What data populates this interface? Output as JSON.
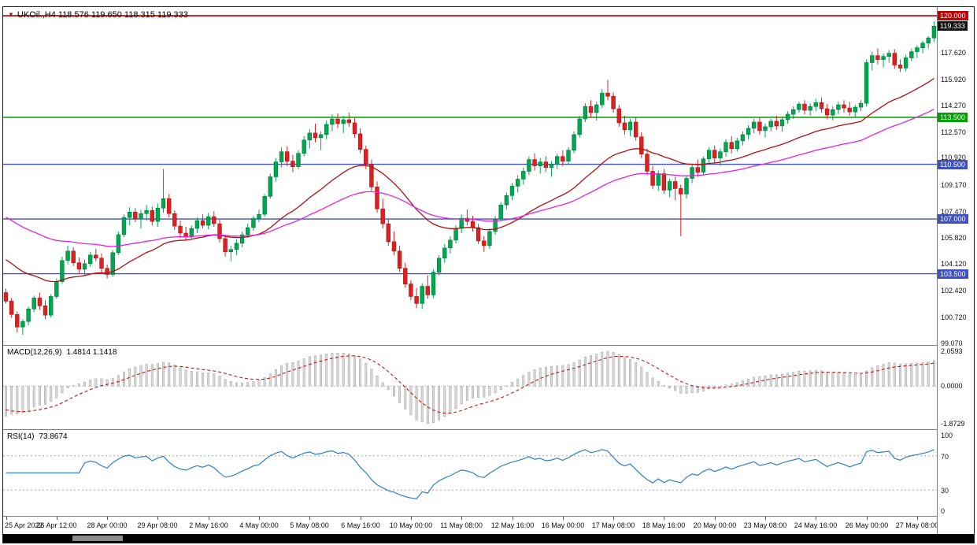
{
  "colors": {
    "bull": "#00a651",
    "bull_stroke": "#067a3c",
    "bear": "#de2020",
    "bear_stroke": "#9c1616",
    "macd_hist_fill": "#d8d8d8",
    "macd_hist_stroke": "#a0a0a0",
    "macd_signal": "#cc0000",
    "rsi_line": "#2f7ec7",
    "grid_dotted": "#a8a8a8",
    "panel_border": "#7a7a7a",
    "scrollbar_bg": "#000000",
    "scrollbar_handle": "#8a8a8a"
  },
  "chart_data": {
    "type": "candlestick_with_indicators",
    "symbol_title": "UKOil.,H4",
    "ohlc_title": "118.576 119.650 118.315 119.333",
    "current_bar": {
      "open": 118.576,
      "high": 119.65,
      "low": 118.315,
      "close": 119.333
    },
    "main_range": {
      "min": 98.95,
      "max": 120.55
    },
    "price_axis_ticks": [
      {
        "label": "117.620",
        "price": 117.62
      },
      {
        "label": "115.920",
        "price": 115.92
      },
      {
        "label": "114.270",
        "price": 114.27
      },
      {
        "label": "112.570",
        "price": 112.57
      },
      {
        "label": "110.920",
        "price": 110.92
      },
      {
        "label": "109.170",
        "price": 109.17
      },
      {
        "label": "107.470",
        "price": 107.47
      },
      {
        "label": "105.820",
        "price": 105.82
      },
      {
        "label": "104.120",
        "price": 104.12
      },
      {
        "label": "102.420",
        "price": 102.42
      },
      {
        "label": "100.720",
        "price": 100.72
      },
      {
        "label": "99.070",
        "price": 99.07
      }
    ],
    "levels": [
      {
        "price": 120.0,
        "color": "#c00000",
        "width": 1.6
      },
      {
        "price": 113.5,
        "color": "#00a000",
        "width": 1.4
      },
      {
        "price": 110.5,
        "color": "#3f51c1",
        "width": 1.4
      },
      {
        "price": 107.0,
        "color": "#3f51c1",
        "width": 1.4
      },
      {
        "price": 103.5,
        "color": "#3f51c1",
        "width": 1.4
      }
    ],
    "badges": [
      {
        "label": "120.000",
        "price": 120.0,
        "bg": "#c00000"
      },
      {
        "label": "119.333",
        "price": 119.333,
        "bg": "#111111"
      },
      {
        "label": "113.500",
        "price": 113.5,
        "bg": "#00a000"
      },
      {
        "label": "110.500",
        "price": 110.5,
        "bg": "#3f51c1"
      },
      {
        "label": "107.000",
        "price": 107.0,
        "bg": "#3f51c1"
      },
      {
        "label": "103.500",
        "price": 103.5,
        "bg": "#3f51c1"
      }
    ],
    "moving_averages": [
      {
        "period": 28,
        "seed": 104.6,
        "color": "#b01010"
      },
      {
        "period": 60,
        "seed": 107.3,
        "color": "#e321e3"
      }
    ],
    "macd": {
      "label": "MACD(12,26,9)",
      "values_text": "1.4814 1.1418",
      "fast": 12,
      "slow": 26,
      "signal_period": 9,
      "axis_labels": [
        "2.0593",
        "0.0000",
        "-1.8729"
      ]
    },
    "rsi": {
      "label": "RSI(14)",
      "value_text": "73.8674",
      "period": 14,
      "axis_labels": [
        {
          "label": "100",
          "value": 100
        },
        {
          "label": "70",
          "value": 70
        },
        {
          "label": "30",
          "value": 30
        },
        {
          "label": "0",
          "value": 0
        }
      ],
      "guides": [
        70,
        30
      ]
    },
    "label_step": 9,
    "time_labels": [
      "25 Apr 2022",
      "26 Apr 12:00",
      "28 Apr 00:00",
      "29 Apr 08:00",
      "2 May 16:00",
      "4 May 00:00",
      "5 May 08:00",
      "6 May 16:00",
      "10 May 00:00",
      "11 May 08:00",
      "12 May 16:00",
      "16 May 00:00",
      "17 May 08:00",
      "18 May 16:00",
      "20 May 00:00",
      "23 May 08:00",
      "24 May 16:00",
      "26 May 00:00",
      "27 May 08:00"
    ],
    "candles": [
      [
        102.3,
        102.55,
        101.6,
        101.75
      ],
      [
        101.75,
        101.95,
        100.7,
        100.9
      ],
      [
        100.9,
        101.1,
        99.75,
        100.1
      ],
      [
        100.1,
        100.6,
        99.6,
        100.45
      ],
      [
        100.45,
        101.4,
        100.2,
        101.25
      ],
      [
        101.25,
        102.1,
        101.05,
        101.95
      ],
      [
        101.95,
        102.3,
        101.2,
        101.45
      ],
      [
        101.45,
        101.8,
        100.6,
        100.85
      ],
      [
        100.85,
        102.2,
        100.7,
        102.05
      ],
      [
        102.05,
        103.2,
        101.9,
        103.0
      ],
      [
        103.0,
        104.6,
        102.85,
        104.35
      ],
      [
        104.35,
        105.3,
        104.1,
        104.95
      ],
      [
        104.95,
        105.2,
        104.0,
        104.2
      ],
      [
        104.2,
        104.55,
        103.55,
        103.8
      ],
      [
        103.8,
        104.4,
        103.4,
        104.15
      ],
      [
        104.15,
        104.9,
        103.95,
        104.7
      ],
      [
        104.7,
        105.1,
        104.3,
        104.5
      ],
      [
        104.5,
        104.8,
        103.6,
        103.85
      ],
      [
        103.85,
        104.1,
        103.2,
        103.45
      ],
      [
        103.45,
        105.0,
        103.3,
        104.85
      ],
      [
        104.85,
        106.2,
        104.7,
        106.0
      ],
      [
        106.0,
        107.3,
        105.85,
        107.1
      ],
      [
        107.1,
        107.75,
        106.6,
        107.45
      ],
      [
        107.45,
        107.7,
        106.8,
        107.0
      ],
      [
        107.0,
        107.6,
        106.4,
        107.35
      ],
      [
        107.35,
        107.9,
        106.9,
        107.55
      ],
      [
        107.55,
        107.8,
        106.6,
        106.85
      ],
      [
        106.85,
        108.0,
        106.5,
        107.7
      ],
      [
        107.7,
        110.2,
        107.4,
        108.3
      ],
      [
        108.3,
        108.6,
        107.1,
        107.35
      ],
      [
        107.35,
        107.55,
        106.3,
        106.55
      ],
      [
        106.55,
        106.9,
        105.8,
        106.1
      ],
      [
        106.1,
        106.5,
        105.6,
        105.85
      ],
      [
        105.85,
        106.6,
        105.7,
        106.4
      ],
      [
        106.4,
        107.1,
        106.1,
        106.9
      ],
      [
        106.9,
        107.3,
        106.4,
        106.6
      ],
      [
        106.6,
        107.4,
        106.35,
        107.15
      ],
      [
        107.15,
        107.5,
        106.5,
        106.7
      ],
      [
        106.7,
        106.95,
        105.5,
        105.75
      ],
      [
        105.75,
        105.95,
        104.6,
        104.9
      ],
      [
        104.9,
        105.3,
        104.3,
        105.05
      ],
      [
        105.05,
        105.7,
        104.7,
        105.45
      ],
      [
        105.45,
        106.2,
        105.2,
        106.0
      ],
      [
        106.0,
        106.7,
        105.8,
        106.45
      ],
      [
        106.45,
        107.2,
        106.25,
        107.05
      ],
      [
        107.05,
        107.6,
        106.8,
        107.3
      ],
      [
        107.3,
        108.6,
        107.15,
        108.45
      ],
      [
        108.45,
        109.9,
        108.3,
        109.7
      ],
      [
        109.7,
        110.9,
        109.4,
        110.65
      ],
      [
        110.65,
        111.6,
        110.3,
        111.3
      ],
      [
        111.3,
        111.65,
        110.4,
        110.7
      ],
      [
        110.7,
        111.1,
        110.0,
        110.35
      ],
      [
        110.35,
        111.4,
        110.2,
        111.2
      ],
      [
        111.2,
        112.3,
        111.0,
        112.05
      ],
      [
        112.05,
        112.75,
        111.5,
        112.5
      ],
      [
        112.5,
        113.1,
        111.9,
        112.2
      ],
      [
        112.2,
        112.6,
        111.4,
        112.4
      ],
      [
        112.4,
        113.3,
        112.1,
        113.05
      ],
      [
        113.05,
        113.7,
        112.6,
        113.4
      ],
      [
        113.4,
        113.75,
        112.8,
        113.1
      ],
      [
        113.1,
        113.6,
        112.5,
        113.35
      ],
      [
        113.35,
        113.8,
        112.9,
        113.15
      ],
      [
        113.15,
        113.45,
        112.2,
        112.45
      ],
      [
        112.45,
        112.8,
        111.2,
        111.45
      ],
      [
        111.45,
        111.7,
        110.2,
        110.5
      ],
      [
        110.5,
        110.8,
        108.8,
        109.05
      ],
      [
        109.05,
        109.4,
        107.4,
        107.65
      ],
      [
        107.65,
        108.3,
        106.4,
        106.7
      ],
      [
        106.7,
        107.0,
        105.3,
        105.55
      ],
      [
        105.55,
        106.2,
        104.7,
        104.95
      ],
      [
        104.95,
        105.3,
        103.6,
        103.85
      ],
      [
        103.85,
        104.2,
        102.6,
        102.85
      ],
      [
        102.85,
        103.1,
        101.8,
        102.05
      ],
      [
        102.05,
        102.6,
        101.3,
        101.6
      ],
      [
        101.6,
        102.9,
        101.25,
        102.7
      ],
      [
        102.7,
        103.4,
        101.9,
        102.15
      ],
      [
        102.15,
        103.8,
        101.95,
        103.6
      ],
      [
        103.6,
        104.7,
        103.4,
        104.5
      ],
      [
        104.5,
        105.4,
        104.2,
        105.15
      ],
      [
        105.15,
        105.9,
        104.8,
        105.65
      ],
      [
        105.65,
        106.6,
        105.45,
        106.4
      ],
      [
        106.4,
        107.3,
        106.1,
        107.05
      ],
      [
        107.05,
        107.6,
        106.6,
        106.85
      ],
      [
        106.85,
        107.2,
        106.2,
        106.45
      ],
      [
        106.45,
        106.7,
        105.4,
        105.6
      ],
      [
        105.6,
        105.9,
        104.9,
        105.3
      ],
      [
        105.3,
        106.4,
        105.1,
        106.2
      ],
      [
        106.2,
        107.2,
        106.0,
        107.0
      ],
      [
        107.0,
        108.1,
        106.85,
        107.9
      ],
      [
        107.9,
        108.7,
        107.6,
        108.5
      ],
      [
        108.5,
        109.3,
        108.2,
        109.1
      ],
      [
        109.1,
        109.8,
        108.7,
        109.55
      ],
      [
        109.55,
        110.3,
        109.2,
        110.05
      ],
      [
        110.05,
        111.0,
        109.8,
        110.8
      ],
      [
        110.8,
        111.2,
        110.1,
        110.4
      ],
      [
        110.4,
        110.9,
        109.9,
        110.65
      ],
      [
        110.65,
        111.0,
        110.0,
        110.3
      ],
      [
        110.3,
        110.7,
        109.7,
        110.5
      ],
      [
        110.5,
        111.2,
        110.2,
        111.0
      ],
      [
        111.0,
        111.4,
        110.4,
        110.7
      ],
      [
        110.7,
        111.6,
        110.5,
        111.4
      ],
      [
        111.4,
        112.6,
        111.2,
        112.4
      ],
      [
        112.4,
        113.6,
        112.2,
        113.4
      ],
      [
        113.4,
        114.4,
        113.2,
        114.2
      ],
      [
        114.2,
        114.6,
        113.5,
        113.8
      ],
      [
        113.8,
        114.5,
        113.3,
        114.3
      ],
      [
        114.3,
        115.3,
        114.1,
        115.05
      ],
      [
        115.05,
        115.9,
        114.6,
        114.85
      ],
      [
        114.85,
        115.1,
        113.8,
        114.05
      ],
      [
        114.05,
        114.3,
        112.9,
        113.15
      ],
      [
        113.15,
        113.6,
        112.4,
        112.7
      ],
      [
        112.7,
        113.4,
        112.3,
        113.2
      ],
      [
        113.2,
        113.5,
        112.0,
        112.25
      ],
      [
        112.25,
        112.55,
        110.9,
        111.15
      ],
      [
        111.15,
        111.5,
        109.8,
        110.05
      ],
      [
        110.05,
        110.4,
        108.9,
        109.15
      ],
      [
        109.15,
        110.1,
        108.8,
        109.9
      ],
      [
        109.9,
        110.2,
        108.6,
        108.85
      ],
      [
        108.85,
        109.6,
        108.4,
        109.4
      ],
      [
        109.4,
        109.7,
        108.2,
        108.95
      ],
      [
        108.95,
        109.2,
        105.9,
        108.6
      ],
      [
        108.6,
        109.8,
        108.3,
        109.6
      ],
      [
        109.6,
        110.5,
        109.3,
        110.3
      ],
      [
        110.3,
        110.8,
        109.7,
        110.0
      ],
      [
        110.0,
        111.0,
        109.8,
        110.85
      ],
      [
        110.85,
        111.6,
        110.6,
        111.4
      ],
      [
        111.4,
        111.7,
        110.6,
        110.9
      ],
      [
        110.9,
        111.5,
        110.4,
        111.3
      ],
      [
        111.3,
        112.1,
        111.0,
        111.9
      ],
      [
        111.9,
        112.3,
        111.2,
        111.5
      ],
      [
        111.5,
        112.2,
        111.3,
        112.0
      ],
      [
        112.0,
        112.6,
        111.7,
        112.4
      ],
      [
        112.4,
        113.0,
        112.1,
        112.8
      ],
      [
        112.8,
        113.4,
        112.5,
        113.2
      ],
      [
        113.2,
        113.5,
        112.4,
        112.65
      ],
      [
        112.65,
        113.1,
        112.2,
        112.9
      ],
      [
        112.9,
        113.4,
        112.6,
        113.25
      ],
      [
        113.25,
        113.6,
        112.7,
        112.95
      ],
      [
        112.95,
        113.5,
        112.6,
        113.35
      ],
      [
        113.35,
        113.9,
        113.1,
        113.7
      ],
      [
        113.7,
        114.2,
        113.4,
        114.0
      ],
      [
        114.0,
        114.5,
        113.8,
        114.35
      ],
      [
        114.35,
        114.6,
        113.7,
        113.95
      ],
      [
        113.95,
        114.4,
        113.6,
        114.2
      ],
      [
        114.2,
        114.7,
        113.9,
        114.45
      ],
      [
        114.45,
        114.75,
        113.8,
        114.05
      ],
      [
        114.05,
        114.35,
        113.4,
        113.65
      ],
      [
        113.65,
        114.2,
        113.3,
        114.0
      ],
      [
        114.0,
        114.5,
        113.7,
        114.3
      ],
      [
        114.3,
        114.6,
        113.8,
        114.1
      ],
      [
        114.1,
        114.5,
        113.6,
        113.85
      ],
      [
        113.85,
        114.3,
        113.5,
        114.15
      ],
      [
        114.15,
        114.6,
        113.9,
        114.4
      ],
      [
        114.4,
        117.2,
        114.2,
        117.0
      ],
      [
        117.0,
        117.7,
        116.5,
        117.45
      ],
      [
        117.45,
        117.9,
        116.9,
        117.2
      ],
      [
        117.2,
        117.6,
        116.7,
        117.4
      ],
      [
        117.4,
        117.8,
        117.0,
        117.6
      ],
      [
        117.6,
        117.85,
        116.6,
        116.85
      ],
      [
        116.85,
        117.2,
        116.4,
        116.65
      ],
      [
        116.65,
        117.5,
        116.45,
        117.3
      ],
      [
        117.3,
        117.9,
        117.1,
        117.7
      ],
      [
        117.7,
        118.1,
        117.3,
        117.95
      ],
      [
        117.95,
        118.4,
        117.6,
        118.25
      ],
      [
        118.25,
        118.7,
        117.9,
        118.58
      ],
      [
        118.576,
        119.65,
        118.315,
        119.333
      ]
    ]
  }
}
